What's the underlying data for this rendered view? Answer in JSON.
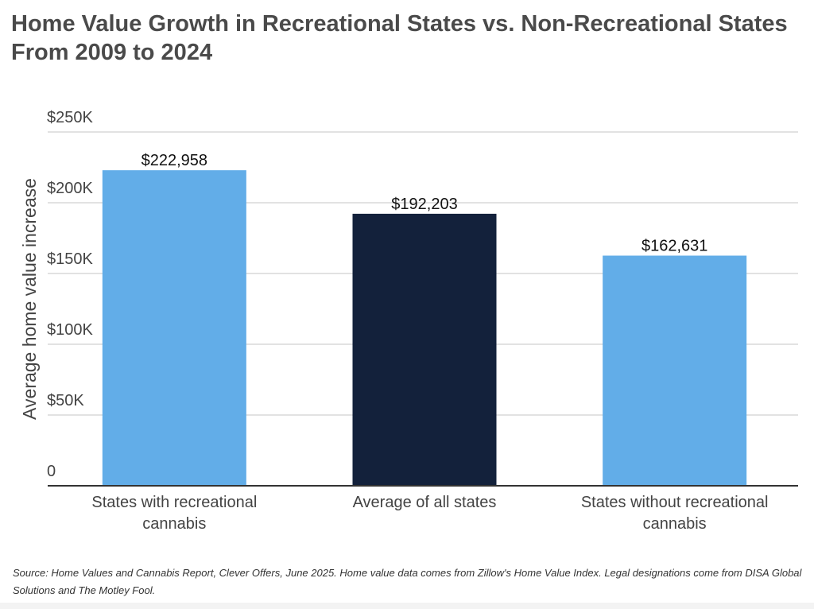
{
  "chart_data": {
    "type": "bar",
    "title": "Home Value Growth in Recreational States vs. Non-Recreational States From 2009 to 2024",
    "xlabel": "",
    "ylabel": "Average home value increase",
    "categories": [
      "States with recreational cannabis",
      "Average of all states",
      "States without recreational cannabis"
    ],
    "category_lines": [
      [
        "States with recreational",
        "cannabis"
      ],
      [
        "Average of all states"
      ],
      [
        "States without recreational",
        "cannabis"
      ]
    ],
    "values": [
      222958,
      192203,
      162631
    ],
    "data_labels": [
      "$222,958",
      "$192,203",
      "$162,631"
    ],
    "bar_colors": [
      "#62ade8",
      "#13213b",
      "#62ade8"
    ],
    "ylim": [
      0,
      250000
    ],
    "yticks": [
      0,
      50000,
      100000,
      150000,
      200000,
      250000
    ],
    "ytick_labels": [
      "0",
      "$50K",
      "$100K",
      "$150K",
      "$200K",
      "$250K"
    ],
    "grid": true,
    "legend": "none"
  },
  "source": "Source: Home Values and Cannabis Report, Clever Offers, June 2025. Home value data comes from Zillow's Home Value Index. Legal designations come from DISA Global Solutions and The Motley Fool."
}
